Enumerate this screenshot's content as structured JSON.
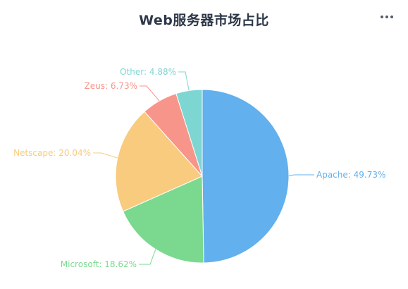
{
  "header": {
    "title": "Web服务器市场占比",
    "more_icon": "more-horizontal-icon"
  },
  "chart_data": {
    "type": "pie",
    "title": "Web服务器市场占比",
    "slices": [
      {
        "name": "Apache",
        "value": 49.73,
        "label": "Apache: 49.73%",
        "color": "#62b0ed"
      },
      {
        "name": "Microsoft",
        "value": 18.62,
        "label": "Microsoft: 18.62%",
        "color": "#7ad98e"
      },
      {
        "name": "Netscape",
        "value": 20.04,
        "label": "Netscape: 20.04%",
        "color": "#f8cb7f"
      },
      {
        "name": "Zeus",
        "value": 6.73,
        "label": "Zeus: 6.73%",
        "color": "#f7958a"
      },
      {
        "name": "Other",
        "value": 4.88,
        "label": "Other: 4.88%",
        "color": "#7ed6d2"
      }
    ],
    "legend": "none",
    "start_angle": "top-clockwise"
  }
}
